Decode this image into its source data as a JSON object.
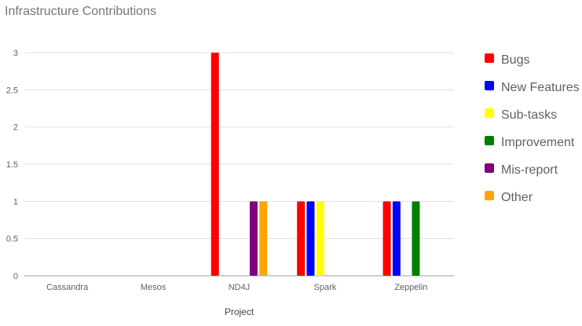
{
  "chart_data": {
    "type": "bar",
    "title": "Infrastructure Contributions",
    "xlabel": "Project",
    "ylabel": "",
    "ylim": [
      0,
      3
    ],
    "yticks": [
      0,
      0.5,
      1,
      1.5,
      2,
      2.5,
      3
    ],
    "grid": true,
    "legend_position": "right",
    "categories": [
      "Cassandra",
      "Mesos",
      "ND4J",
      "Spark",
      "Zeppelin"
    ],
    "series": [
      {
        "name": "Bugs",
        "color": "#ff0000",
        "values": [
          0,
          0,
          3,
          1,
          1
        ]
      },
      {
        "name": "New Features",
        "color": "#0000ff",
        "values": [
          0,
          0,
          0,
          1,
          1
        ]
      },
      {
        "name": "Sub-tasks",
        "color": "#ffff00",
        "values": [
          0,
          0,
          0,
          1,
          0
        ]
      },
      {
        "name": "Improvement",
        "color": "#008000",
        "values": [
          0,
          0,
          0,
          0,
          1
        ]
      },
      {
        "name": "Mis-report",
        "color": "#800080",
        "values": [
          0,
          0,
          1,
          0,
          0
        ]
      },
      {
        "name": "Other",
        "color": "#ffa500",
        "values": [
          0,
          0,
          1,
          0,
          0
        ]
      }
    ]
  }
}
